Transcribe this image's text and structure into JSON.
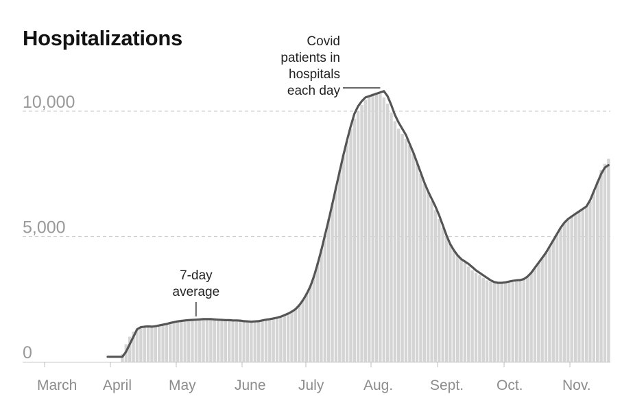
{
  "chart_data": {
    "type": "bar",
    "title": "Hospitalizations",
    "y_ticks": [
      {
        "value": 0,
        "label": "0"
      },
      {
        "value": 5000,
        "label": "5,000"
      },
      {
        "value": 10000,
        "label": "10,000"
      }
    ],
    "x_tick_labels": [
      "March",
      "April",
      "May",
      "June",
      "July",
      "Aug.",
      "Sept.",
      "Oct.",
      "Nov."
    ],
    "ylim": [
      0,
      10000
    ],
    "grid": "dashed horizontal at 5,000 and 10,000",
    "series": [
      {
        "kind": "daily bars",
        "color": "#d4d4d4",
        "points": [
          [
            0,
            0
          ],
          [
            1,
            0
          ],
          [
            2,
            0
          ],
          [
            3,
            0
          ],
          [
            4,
            300
          ],
          [
            5,
            700
          ],
          [
            6,
            1000
          ],
          [
            7,
            1200
          ],
          [
            8,
            1300
          ],
          [
            9,
            1400
          ],
          [
            10,
            1420
          ],
          [
            11,
            1420
          ],
          [
            12,
            1450
          ],
          [
            13,
            1460
          ],
          [
            14,
            1470
          ],
          [
            15,
            1500
          ],
          [
            16,
            1530
          ],
          [
            17,
            1560
          ],
          [
            18,
            1590
          ],
          [
            19,
            1610
          ],
          [
            20,
            1630
          ],
          [
            21,
            1650
          ],
          [
            22,
            1650
          ],
          [
            23,
            1660
          ],
          [
            24,
            1680
          ],
          [
            25,
            1700
          ],
          [
            26,
            1710
          ],
          [
            27,
            1700
          ],
          [
            28,
            1690
          ],
          [
            29,
            1690
          ],
          [
            30,
            1680
          ],
          [
            31,
            1660
          ],
          [
            32,
            1660
          ],
          [
            33,
            1660
          ],
          [
            34,
            1650
          ],
          [
            35,
            1650
          ],
          [
            36,
            1640
          ],
          [
            37,
            1620
          ],
          [
            38,
            1610
          ],
          [
            39,
            1600
          ],
          [
            40,
            1610
          ],
          [
            41,
            1620
          ],
          [
            42,
            1650
          ],
          [
            43,
            1680
          ],
          [
            44,
            1700
          ],
          [
            45,
            1730
          ],
          [
            46,
            1760
          ],
          [
            47,
            1800
          ],
          [
            48,
            1880
          ],
          [
            49,
            1950
          ],
          [
            50,
            2050
          ],
          [
            51,
            2150
          ],
          [
            52,
            2300
          ],
          [
            53,
            2500
          ],
          [
            54,
            2750
          ],
          [
            55,
            3050
          ],
          [
            56,
            3450
          ],
          [
            57,
            3950
          ],
          [
            58,
            4500
          ],
          [
            59,
            5100
          ],
          [
            60,
            5700
          ],
          [
            61,
            6350
          ],
          [
            62,
            7000
          ],
          [
            63,
            7650
          ],
          [
            64,
            8250
          ],
          [
            65,
            8800
          ],
          [
            66,
            9300
          ],
          [
            67,
            9700
          ],
          [
            68,
            10000
          ],
          [
            69,
            10250
          ],
          [
            70,
            10450
          ],
          [
            71,
            10600
          ],
          [
            72,
            10700
          ],
          [
            73,
            10750
          ],
          [
            74,
            10700
          ],
          [
            75,
            10550
          ],
          [
            76,
            10300
          ],
          [
            77,
            9950
          ],
          [
            78,
            9600
          ],
          [
            79,
            9300
          ],
          [
            80,
            9100
          ],
          [
            81,
            8900
          ],
          [
            82,
            8650
          ],
          [
            83,
            8300
          ],
          [
            84,
            7900
          ],
          [
            85,
            7500
          ],
          [
            86,
            7100
          ],
          [
            87,
            6750
          ],
          [
            88,
            6400
          ],
          [
            89,
            6050
          ],
          [
            90,
            5700
          ],
          [
            91,
            5350
          ],
          [
            92,
            5000
          ],
          [
            93,
            4700
          ],
          [
            94,
            4450
          ],
          [
            95,
            4250
          ],
          [
            96,
            4100
          ],
          [
            97,
            3950
          ],
          [
            98,
            3800
          ],
          [
            99,
            3650
          ],
          [
            100,
            3550
          ],
          [
            101,
            3450
          ],
          [
            102,
            3350
          ],
          [
            103,
            3250
          ],
          [
            104,
            3180
          ],
          [
            105,
            3150
          ],
          [
            106,
            3130
          ],
          [
            107,
            3130
          ],
          [
            108,
            3140
          ],
          [
            109,
            3160
          ],
          [
            110,
            3180
          ],
          [
            111,
            3200
          ],
          [
            112,
            3230
          ],
          [
            113,
            3290
          ],
          [
            114,
            3400
          ],
          [
            115,
            3550
          ],
          [
            116,
            3750
          ],
          [
            117,
            3950
          ],
          [
            118,
            4150
          ],
          [
            119,
            4350
          ],
          [
            120,
            4600
          ],
          [
            121,
            4850
          ],
          [
            122,
            5100
          ],
          [
            123,
            5350
          ],
          [
            124,
            5550
          ],
          [
            125,
            5700
          ],
          [
            126,
            5800
          ],
          [
            127,
            5900
          ],
          [
            128,
            6000
          ],
          [
            129,
            6100
          ],
          [
            130,
            6200
          ],
          [
            131,
            6400
          ],
          [
            132,
            6800
          ],
          [
            133,
            7200
          ],
          [
            134,
            7650
          ],
          [
            135,
            7900
          ],
          [
            136,
            8100
          ]
        ]
      },
      {
        "kind": "7-day average line",
        "color": "#555555",
        "points": [
          [
            0,
            200
          ],
          [
            4,
            200
          ],
          [
            5,
            400
          ],
          [
            6,
            700
          ],
          [
            7,
            1000
          ],
          [
            8,
            1300
          ],
          [
            9,
            1380
          ],
          [
            10,
            1400
          ],
          [
            11,
            1410
          ],
          [
            12,
            1400
          ],
          [
            13,
            1420
          ],
          [
            14,
            1450
          ],
          [
            15,
            1480
          ],
          [
            16,
            1510
          ],
          [
            17,
            1550
          ],
          [
            18,
            1580
          ],
          [
            19,
            1610
          ],
          [
            20,
            1630
          ],
          [
            21,
            1650
          ],
          [
            22,
            1660
          ],
          [
            23,
            1670
          ],
          [
            24,
            1680
          ],
          [
            25,
            1690
          ],
          [
            26,
            1700
          ],
          [
            27,
            1700
          ],
          [
            28,
            1700
          ],
          [
            29,
            1690
          ],
          [
            30,
            1680
          ],
          [
            31,
            1670
          ],
          [
            32,
            1660
          ],
          [
            33,
            1660
          ],
          [
            34,
            1650
          ],
          [
            35,
            1650
          ],
          [
            36,
            1640
          ],
          [
            37,
            1620
          ],
          [
            38,
            1610
          ],
          [
            39,
            1600
          ],
          [
            40,
            1610
          ],
          [
            41,
            1620
          ],
          [
            42,
            1650
          ],
          [
            43,
            1680
          ],
          [
            44,
            1700
          ],
          [
            45,
            1730
          ],
          [
            46,
            1760
          ],
          [
            47,
            1800
          ],
          [
            48,
            1860
          ],
          [
            49,
            1920
          ],
          [
            50,
            2000
          ],
          [
            51,
            2100
          ],
          [
            52,
            2250
          ],
          [
            53,
            2450
          ],
          [
            54,
            2700
          ],
          [
            55,
            3000
          ],
          [
            56,
            3400
          ],
          [
            57,
            3900
          ],
          [
            58,
            4450
          ],
          [
            59,
            5050
          ],
          [
            60,
            5650
          ],
          [
            61,
            6300
          ],
          [
            62,
            6950
          ],
          [
            63,
            7600
          ],
          [
            64,
            8250
          ],
          [
            65,
            8850
          ],
          [
            66,
            9400
          ],
          [
            67,
            9900
          ],
          [
            68,
            10200
          ],
          [
            69,
            10400
          ],
          [
            70,
            10550
          ],
          [
            71,
            10600
          ],
          [
            72,
            10650
          ],
          [
            73,
            10700
          ],
          [
            74,
            10750
          ],
          [
            75,
            10800
          ],
          [
            76,
            10600
          ],
          [
            77,
            10250
          ],
          [
            78,
            9850
          ],
          [
            79,
            9550
          ],
          [
            80,
            9300
          ],
          [
            81,
            9050
          ],
          [
            82,
            8700
          ],
          [
            83,
            8350
          ],
          [
            84,
            7950
          ],
          [
            85,
            7550
          ],
          [
            86,
            7150
          ],
          [
            87,
            6800
          ],
          [
            88,
            6500
          ],
          [
            89,
            6200
          ],
          [
            90,
            5850
          ],
          [
            91,
            5450
          ],
          [
            92,
            5050
          ],
          [
            93,
            4700
          ],
          [
            94,
            4450
          ],
          [
            95,
            4250
          ],
          [
            96,
            4100
          ],
          [
            97,
            4000
          ],
          [
            98,
            3900
          ],
          [
            99,
            3780
          ],
          [
            100,
            3650
          ],
          [
            101,
            3550
          ],
          [
            102,
            3450
          ],
          [
            103,
            3350
          ],
          [
            104,
            3250
          ],
          [
            105,
            3180
          ],
          [
            106,
            3150
          ],
          [
            107,
            3150
          ],
          [
            108,
            3170
          ],
          [
            109,
            3200
          ],
          [
            110,
            3230
          ],
          [
            111,
            3250
          ],
          [
            112,
            3260
          ],
          [
            113,
            3300
          ],
          [
            114,
            3400
          ],
          [
            115,
            3550
          ],
          [
            116,
            3750
          ],
          [
            117,
            3950
          ],
          [
            118,
            4150
          ],
          [
            119,
            4350
          ],
          [
            120,
            4600
          ],
          [
            121,
            4850
          ],
          [
            122,
            5100
          ],
          [
            123,
            5350
          ],
          [
            124,
            5550
          ],
          [
            125,
            5700
          ],
          [
            126,
            5800
          ],
          [
            127,
            5900
          ],
          [
            128,
            6000
          ],
          [
            129,
            6100
          ],
          [
            130,
            6200
          ],
          [
            131,
            6450
          ],
          [
            132,
            6800
          ],
          [
            133,
            7150
          ],
          [
            134,
            7500
          ],
          [
            135,
            7750
          ],
          [
            136,
            7850
          ]
        ]
      }
    ],
    "annotations": [
      {
        "text_lines": [
          "7-day",
          "average"
        ],
        "points_to_day": 24
      },
      {
        "text_lines": [
          "Covid",
          "patients in",
          "hospitals",
          "each day"
        ],
        "points_to_day": 74
      }
    ]
  }
}
